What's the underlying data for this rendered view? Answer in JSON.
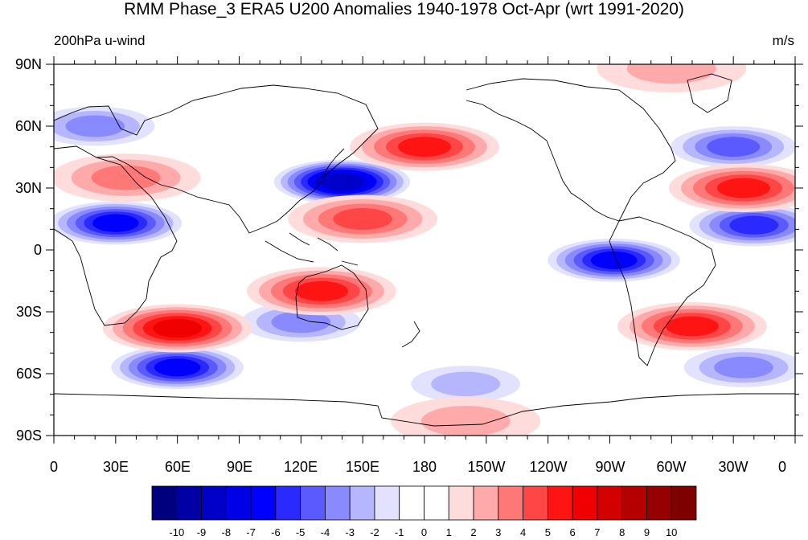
{
  "header": {
    "title": "RMM Phase_3 ERA5 U200 Anomalies 1940-1978 Oct-Apr (wrt 1991-2020)",
    "left_label": "200hPa u-wind",
    "right_label": "m/s"
  },
  "axes": {
    "y_ticks": [
      "90N",
      "60N",
      "30N",
      "0",
      "30S",
      "60S",
      "90S"
    ],
    "x_ticks": [
      "0",
      "30E",
      "60E",
      "90E",
      "120E",
      "150E",
      "180",
      "150W",
      "120W",
      "90W",
      "60W",
      "30W",
      "0"
    ]
  },
  "colorbar": {
    "labels": [
      "-10",
      "-9",
      "-8",
      "-7",
      "-6",
      "-5",
      "-4",
      "-3",
      "-2",
      "-1",
      "0",
      "1",
      "2",
      "3",
      "4",
      "5",
      "6",
      "7",
      "8",
      "9",
      "10"
    ],
    "colors": [
      "#00007f",
      "#0000a6",
      "#0000c8",
      "#0000e6",
      "#0000ff",
      "#2a2aff",
      "#5a5aff",
      "#8a8aff",
      "#b6b6ff",
      "#e2e2ff",
      "#ffffff",
      "#ffffff",
      "#ffdcdc",
      "#ffaaaa",
      "#ff7878",
      "#ff4646",
      "#ff1414",
      "#f00000",
      "#d20000",
      "#b40000",
      "#960000",
      "#7f0000"
    ]
  },
  "map": {
    "projection": "cylindrical-equidistant",
    "variable": "u200 anomaly",
    "features": [
      {
        "lon": 140,
        "lat": 33,
        "value": -9
      },
      {
        "lon": 60,
        "lat": -57,
        "value": -7
      },
      {
        "lon": 30,
        "lat": 13,
        "value": -7
      },
      {
        "lon": 272,
        "lat": -5,
        "value": -7
      },
      {
        "lon": 340,
        "lat": 12,
        "value": -6
      },
      {
        "lon": 330,
        "lat": 50,
        "value": -5
      },
      {
        "lon": 20,
        "lat": 60,
        "value": -4
      },
      {
        "lon": 120,
        "lat": -35,
        "value": -4
      },
      {
        "lon": 335,
        "lat": -57,
        "value": -4
      },
      {
        "lon": 200,
        "lat": -65,
        "value": -3
      },
      {
        "lon": 60,
        "lat": -38,
        "value": 6
      },
      {
        "lon": 130,
        "lat": -20,
        "value": 5
      },
      {
        "lon": 150,
        "lat": 15,
        "value": 4
      },
      {
        "lon": 180,
        "lat": 50,
        "value": 5
      },
      {
        "lon": 310,
        "lat": -37,
        "value": 5
      },
      {
        "lon": 335,
        "lat": 30,
        "value": 5
      },
      {
        "lon": 35,
        "lat": 35,
        "value": 3
      },
      {
        "lon": 300,
        "lat": 88,
        "value": 2
      },
      {
        "lon": 200,
        "lat": -83,
        "value": 2
      }
    ]
  }
}
